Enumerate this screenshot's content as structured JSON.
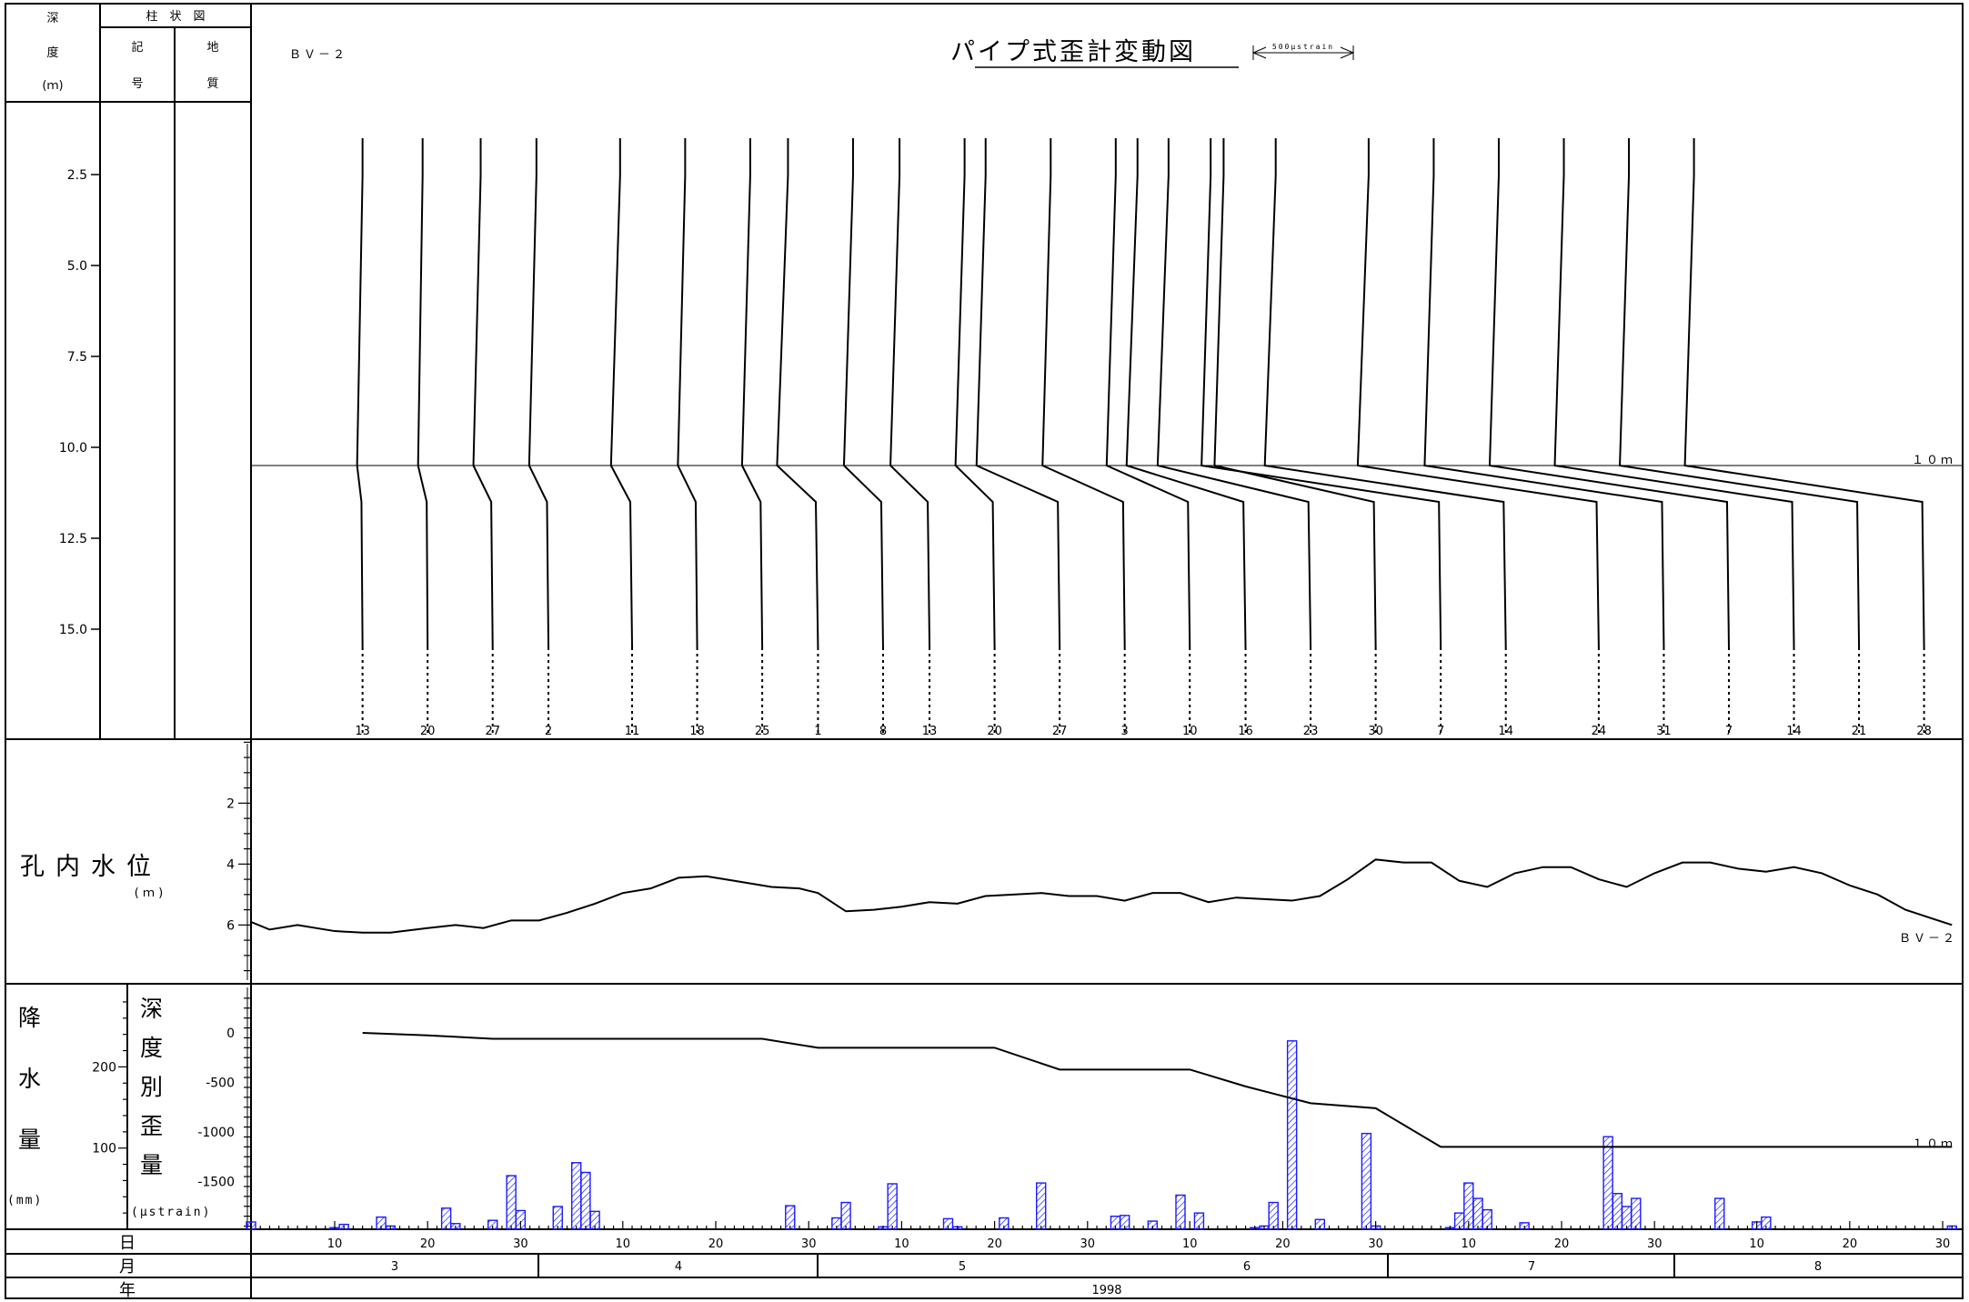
{
  "header": {
    "depth_label": [
      "深",
      "度",
      "(ｍ)"
    ],
    "column_title": "柱　状　図",
    "symbol_label": [
      "記",
      "号"
    ],
    "geology_label": [
      "地",
      "質"
    ]
  },
  "title": "パイプ式歪計変動図",
  "scale_label": "500μstrain",
  "borehole_id": "ＢＶ－２",
  "marker_10m": "１０ｍ",
  "water_panel": {
    "label": "孔内水位",
    "unit": "(ｍ)"
  },
  "rain_panel": {
    "label": [
      "降",
      "水",
      "量"
    ],
    "unit": "(mm)"
  },
  "strain_panel": {
    "label": [
      "深",
      "度",
      "別",
      "歪",
      "量"
    ],
    "unit": "(μstrain)"
  },
  "axis_rows": {
    "day": "日",
    "month": "月",
    "year": "年",
    "year_value": "1998"
  },
  "months": [
    "3",
    "4",
    "5",
    "6",
    "7",
    "8"
  ],
  "colors": {
    "rain_bar": "#1a1aff",
    "line": "#000000"
  },
  "chart_data": [
    {
      "type": "line",
      "name": "strain_profiles",
      "ylabel": "深度(ｍ)",
      "ylim": [
        17.5,
        0.5
      ],
      "yticks": [
        2.5,
        5.0,
        7.5,
        10.0,
        12.5,
        15.0
      ],
      "ytick_labels": [
        "2.5",
        "5.0",
        "7.5",
        "10.0",
        "12.5",
        "15.0"
      ],
      "dates": [
        "1998-03-13",
        "1998-03-20",
        "1998-03-27",
        "1998-04-02",
        "1998-04-11",
        "1998-04-18",
        "1998-04-25",
        "1998-05-01",
        "1998-05-08",
        "1998-05-13",
        "1998-05-20",
        "1998-05-27",
        "1998-06-03",
        "1998-06-10",
        "1998-06-16",
        "1998-06-23",
        "1998-06-30",
        "1998-07-07",
        "1998-07-14",
        "1998-07-24",
        "1998-07-31",
        "1998-08-07",
        "1998-08-14",
        "1998-08-21",
        "1998-08-28"
      ],
      "day_labels": [
        "13",
        "20",
        "27",
        "2",
        "11",
        "18",
        "25",
        "1",
        "8",
        "13",
        "20",
        "27",
        "3",
        "10",
        "16",
        "23",
        "30",
        "7",
        "14",
        "24",
        "31",
        "7",
        "14",
        "21",
        "28"
      ],
      "cumulative_strain_at_10m": [
        0,
        -25,
        -60,
        -60,
        -60,
        -60,
        -60,
        -150,
        -150,
        -150,
        -150,
        -370,
        -370,
        -370,
        -540,
        -710,
        -760,
        -1150,
        -1150,
        -1150,
        -1150,
        -1150,
        -1150,
        -1150,
        -1150
      ]
    },
    {
      "type": "line",
      "name": "water_level",
      "ylabel": "孔内水位(ｍ)",
      "ylim": [
        7.8,
        -0.1
      ],
      "yticks": [
        2,
        4,
        6
      ],
      "dates": [
        "1998-03-01",
        "1998-03-03",
        "1998-03-06",
        "1998-03-10",
        "1998-03-13",
        "1998-03-16",
        "1998-03-20",
        "1998-03-23",
        "1998-03-26",
        "1998-03-29",
        "1998-04-01",
        "1998-04-04",
        "1998-04-07",
        "1998-04-10",
        "1998-04-13",
        "1998-04-16",
        "1998-04-19",
        "1998-04-22",
        "1998-04-26",
        "1998-04-29",
        "1998-05-01",
        "1998-05-04",
        "1998-05-07",
        "1998-05-10",
        "1998-05-13",
        "1998-05-16",
        "1998-05-19",
        "1998-05-22",
        "1998-05-25",
        "1998-05-28",
        "1998-05-31",
        "1998-06-03",
        "1998-06-06",
        "1998-06-09",
        "1998-06-12",
        "1998-06-15",
        "1998-06-18",
        "1998-06-21",
        "1998-06-24",
        "1998-06-27",
        "1998-06-30",
        "1998-07-03",
        "1998-07-06",
        "1998-07-09",
        "1998-07-12",
        "1998-07-15",
        "1998-07-18",
        "1998-07-21",
        "1998-07-24",
        "1998-07-27",
        "1998-07-30",
        "1998-08-02",
        "1998-08-05",
        "1998-08-08",
        "1998-08-11",
        "1998-08-14",
        "1998-08-17",
        "1998-08-20",
        "1998-08-23",
        "1998-08-26",
        "1998-08-29",
        "1998-08-31"
      ],
      "values": [
        5.9,
        6.15,
        6.0,
        6.2,
        6.25,
        6.25,
        6.1,
        6.0,
        6.1,
        5.85,
        5.85,
        5.6,
        5.3,
        4.95,
        4.8,
        4.45,
        4.4,
        4.55,
        4.75,
        4.8,
        4.95,
        5.55,
        5.5,
        5.4,
        5.25,
        5.3,
        5.05,
        5.0,
        4.95,
        5.05,
        5.05,
        5.2,
        4.95,
        4.95,
        5.25,
        5.1,
        5.15,
        5.2,
        5.05,
        4.5,
        3.85,
        3.95,
        3.95,
        4.55,
        4.75,
        4.3,
        4.1,
        4.1,
        4.5,
        4.75,
        4.3,
        3.95,
        3.95,
        4.15,
        4.25,
        4.1,
        4.3,
        4.7,
        5.0,
        5.5,
        5.8,
        6.0
      ]
    },
    {
      "type": "bar",
      "name": "rainfall",
      "ylabel": "降水量(mm)",
      "ylim": [
        0,
        235
      ],
      "yticks": [
        100,
        200
      ],
      "dates": [
        "1998-03-01",
        "1998-03-10",
        "1998-03-11",
        "1998-03-15",
        "1998-03-16",
        "1998-03-22",
        "1998-03-23",
        "1998-03-27",
        "1998-03-29",
        "1998-03-30",
        "1998-04-03",
        "1998-04-05",
        "1998-04-06",
        "1998-04-07",
        "1998-04-28",
        "1998-05-03",
        "1998-05-04",
        "1998-05-08",
        "1998-05-09",
        "1998-05-15",
        "1998-05-16",
        "1998-05-21",
        "1998-05-25",
        "1998-06-02",
        "1998-06-03",
        "1998-06-06",
        "1998-06-09",
        "1998-06-11",
        "1998-06-17",
        "1998-06-18",
        "1998-06-19",
        "1998-06-21",
        "1998-06-24",
        "1998-06-29",
        "1998-06-30",
        "1998-07-08",
        "1998-07-09",
        "1998-07-10",
        "1998-07-11",
        "1998-07-12",
        "1998-07-16",
        "1998-07-25",
        "1998-07-26",
        "1998-07-27",
        "1998-07-28",
        "1998-08-06",
        "1998-08-10",
        "1998-08-11",
        "1998-08-31"
      ],
      "values": [
        9,
        2,
        6,
        15,
        4,
        26,
        7,
        11,
        66,
        23,
        28,
        82,
        70,
        22,
        29,
        14,
        33,
        3,
        56,
        13,
        3,
        14,
        57,
        16,
        17,
        10,
        42,
        20,
        2,
        4,
        33,
        232,
        12,
        118,
        4,
        2,
        20,
        57,
        38,
        24,
        8,
        114,
        44,
        28,
        38,
        38,
        9,
        15,
        4
      ]
    },
    {
      "type": "line",
      "name": "strain_at_10m",
      "ylabel": "深度別歪量(μstrain)",
      "ylim": [
        -1965,
        375
      ],
      "yticks": [
        0,
        -500,
        -1000,
        -1500
      ],
      "ytick_labels": [
        "0",
        "-500",
        "-1000",
        "-1500"
      ],
      "label": "１０ｍ",
      "dates": [
        "1998-03-13",
        "1998-03-20",
        "1998-03-27",
        "1998-04-25",
        "1998-05-01",
        "1998-05-20",
        "1998-05-27",
        "1998-06-10",
        "1998-06-16",
        "1998-06-23",
        "1998-06-30",
        "1998-07-07",
        "1998-08-31"
      ],
      "values": [
        0,
        -25,
        -60,
        -60,
        -150,
        -150,
        -370,
        -370,
        -540,
        -710,
        -760,
        -1150,
        -1150
      ]
    }
  ]
}
